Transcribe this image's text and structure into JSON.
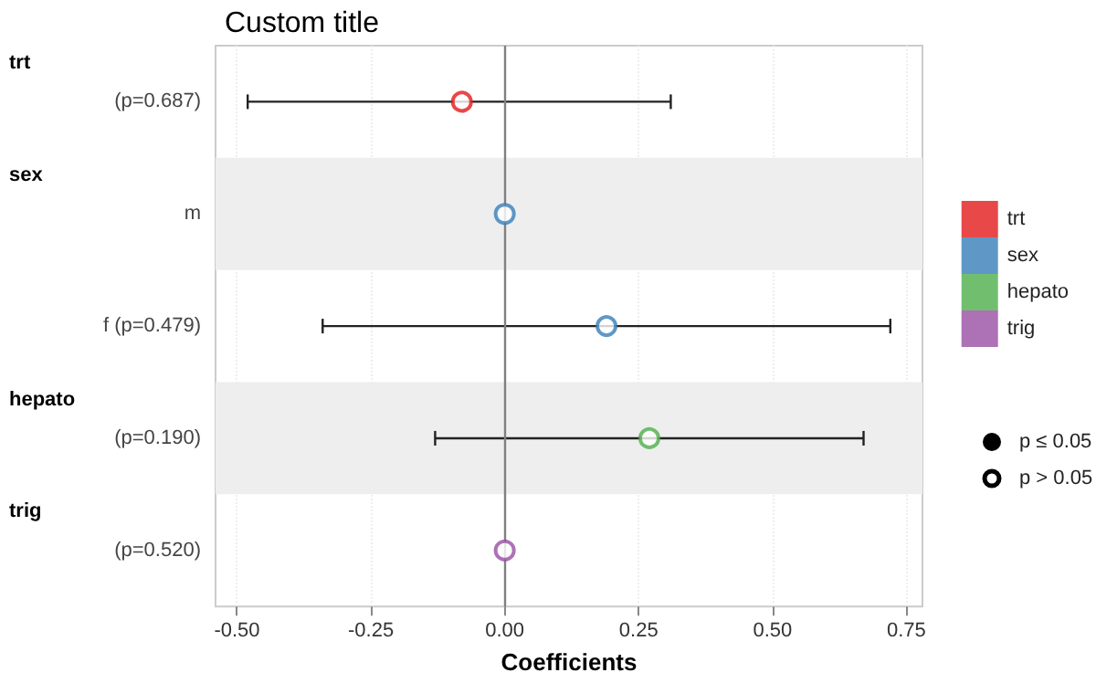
{
  "chart_data": {
    "type": "scatter",
    "orientation": "horizontal",
    "title": "Custom title",
    "xlabel": "Coefficients",
    "categories": [
      "(p=0.687)",
      "m",
      "f (p=0.479)",
      "(p=0.190)",
      "(p=0.520)"
    ],
    "series": [
      {
        "name": "trt",
        "color": "#e41a1c",
        "values": [
          -0.08,
          null,
          null,
          null,
          null
        ],
        "errors": [
          [
            -0.48,
            0.31
          ],
          null,
          null,
          null,
          null
        ]
      },
      {
        "name": "sex",
        "color": "#377eb8",
        "values": [
          null,
          0,
          0.19,
          null,
          null
        ],
        "errors": [
          null,
          null,
          [
            -0.34,
            0.72
          ],
          null,
          null
        ]
      },
      {
        "name": "hepato",
        "color": "#4daf4a",
        "values": [
          null,
          null,
          null,
          0.27,
          null
        ],
        "errors": [
          null,
          null,
          null,
          [
            -0.13,
            0.67
          ],
          null
        ]
      },
      {
        "name": "trig",
        "color": "#984ea3",
        "values": [
          null,
          null,
          null,
          null,
          0
        ],
        "errors": [
          null,
          null,
          null,
          null,
          null
        ]
      }
    ],
    "xlim": [
      -0.54,
      0.78
    ],
    "xticks": [
      {
        "value": -0.5,
        "label": "-0.50"
      },
      {
        "value": -0.25,
        "label": "-0.25"
      },
      {
        "value": 0,
        "label": "0.00"
      },
      {
        "value": 0.25,
        "label": "0.25"
      },
      {
        "value": 0.5,
        "label": "0.50"
      },
      {
        "value": 0.75,
        "label": "0.75"
      }
    ],
    "bands": [
      {
        "axis": "y",
        "from": "m",
        "to": "m",
        "color": "#eeeeee"
      },
      {
        "axis": "y",
        "from": "(p=0.190)",
        "to": "(p=0.190)",
        "color": "#eeeeee"
      }
    ],
    "ref_lines": [
      {
        "axis": "x",
        "value": 0,
        "color": "#808080"
      }
    ],
    "annotations": [
      "trt",
      "sex",
      "hepato",
      "trig",
      "p ≤ 0.05",
      "p > 0.05"
    ],
    "grid": "x",
    "legend": "right",
    "marker": "circle"
  }
}
